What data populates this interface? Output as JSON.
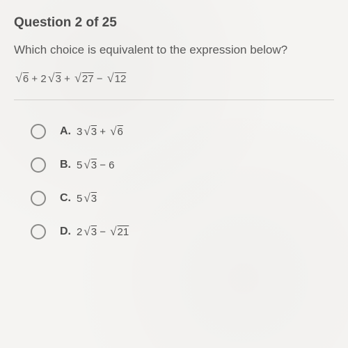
{
  "header": {
    "title": "Question 2 of 25"
  },
  "question": {
    "stem": "Which choice is equivalent to the expression below?"
  },
  "expression": {
    "parts": {
      "r1": "6",
      "op1": " + ",
      "c2": "2",
      "r2": "3",
      "op2": " + ",
      "r3": "27",
      "op3": " − ",
      "r4": "12"
    }
  },
  "choices": {
    "a": {
      "letter": "A.",
      "coef": "3",
      "r1": "3",
      "op": " + ",
      "r2": "6"
    },
    "b": {
      "letter": "B.",
      "coef": "5",
      "r1": "3",
      "op": " − ",
      "tail": "6"
    },
    "c": {
      "letter": "C.",
      "coef": "5",
      "r1": "3"
    },
    "d": {
      "letter": "D.",
      "coef": "2",
      "r1": "3",
      "op": " − ",
      "r2": "21"
    }
  },
  "colors": {
    "bg": "#f5f4f2",
    "text": "#4a4a4a",
    "divider": "#d4d2cf",
    "radio_border": "#8a8a88"
  },
  "typography": {
    "title_fontsize": 19,
    "stem_fontsize": 17,
    "math_fontsize": 17,
    "letter_fontsize": 16
  }
}
